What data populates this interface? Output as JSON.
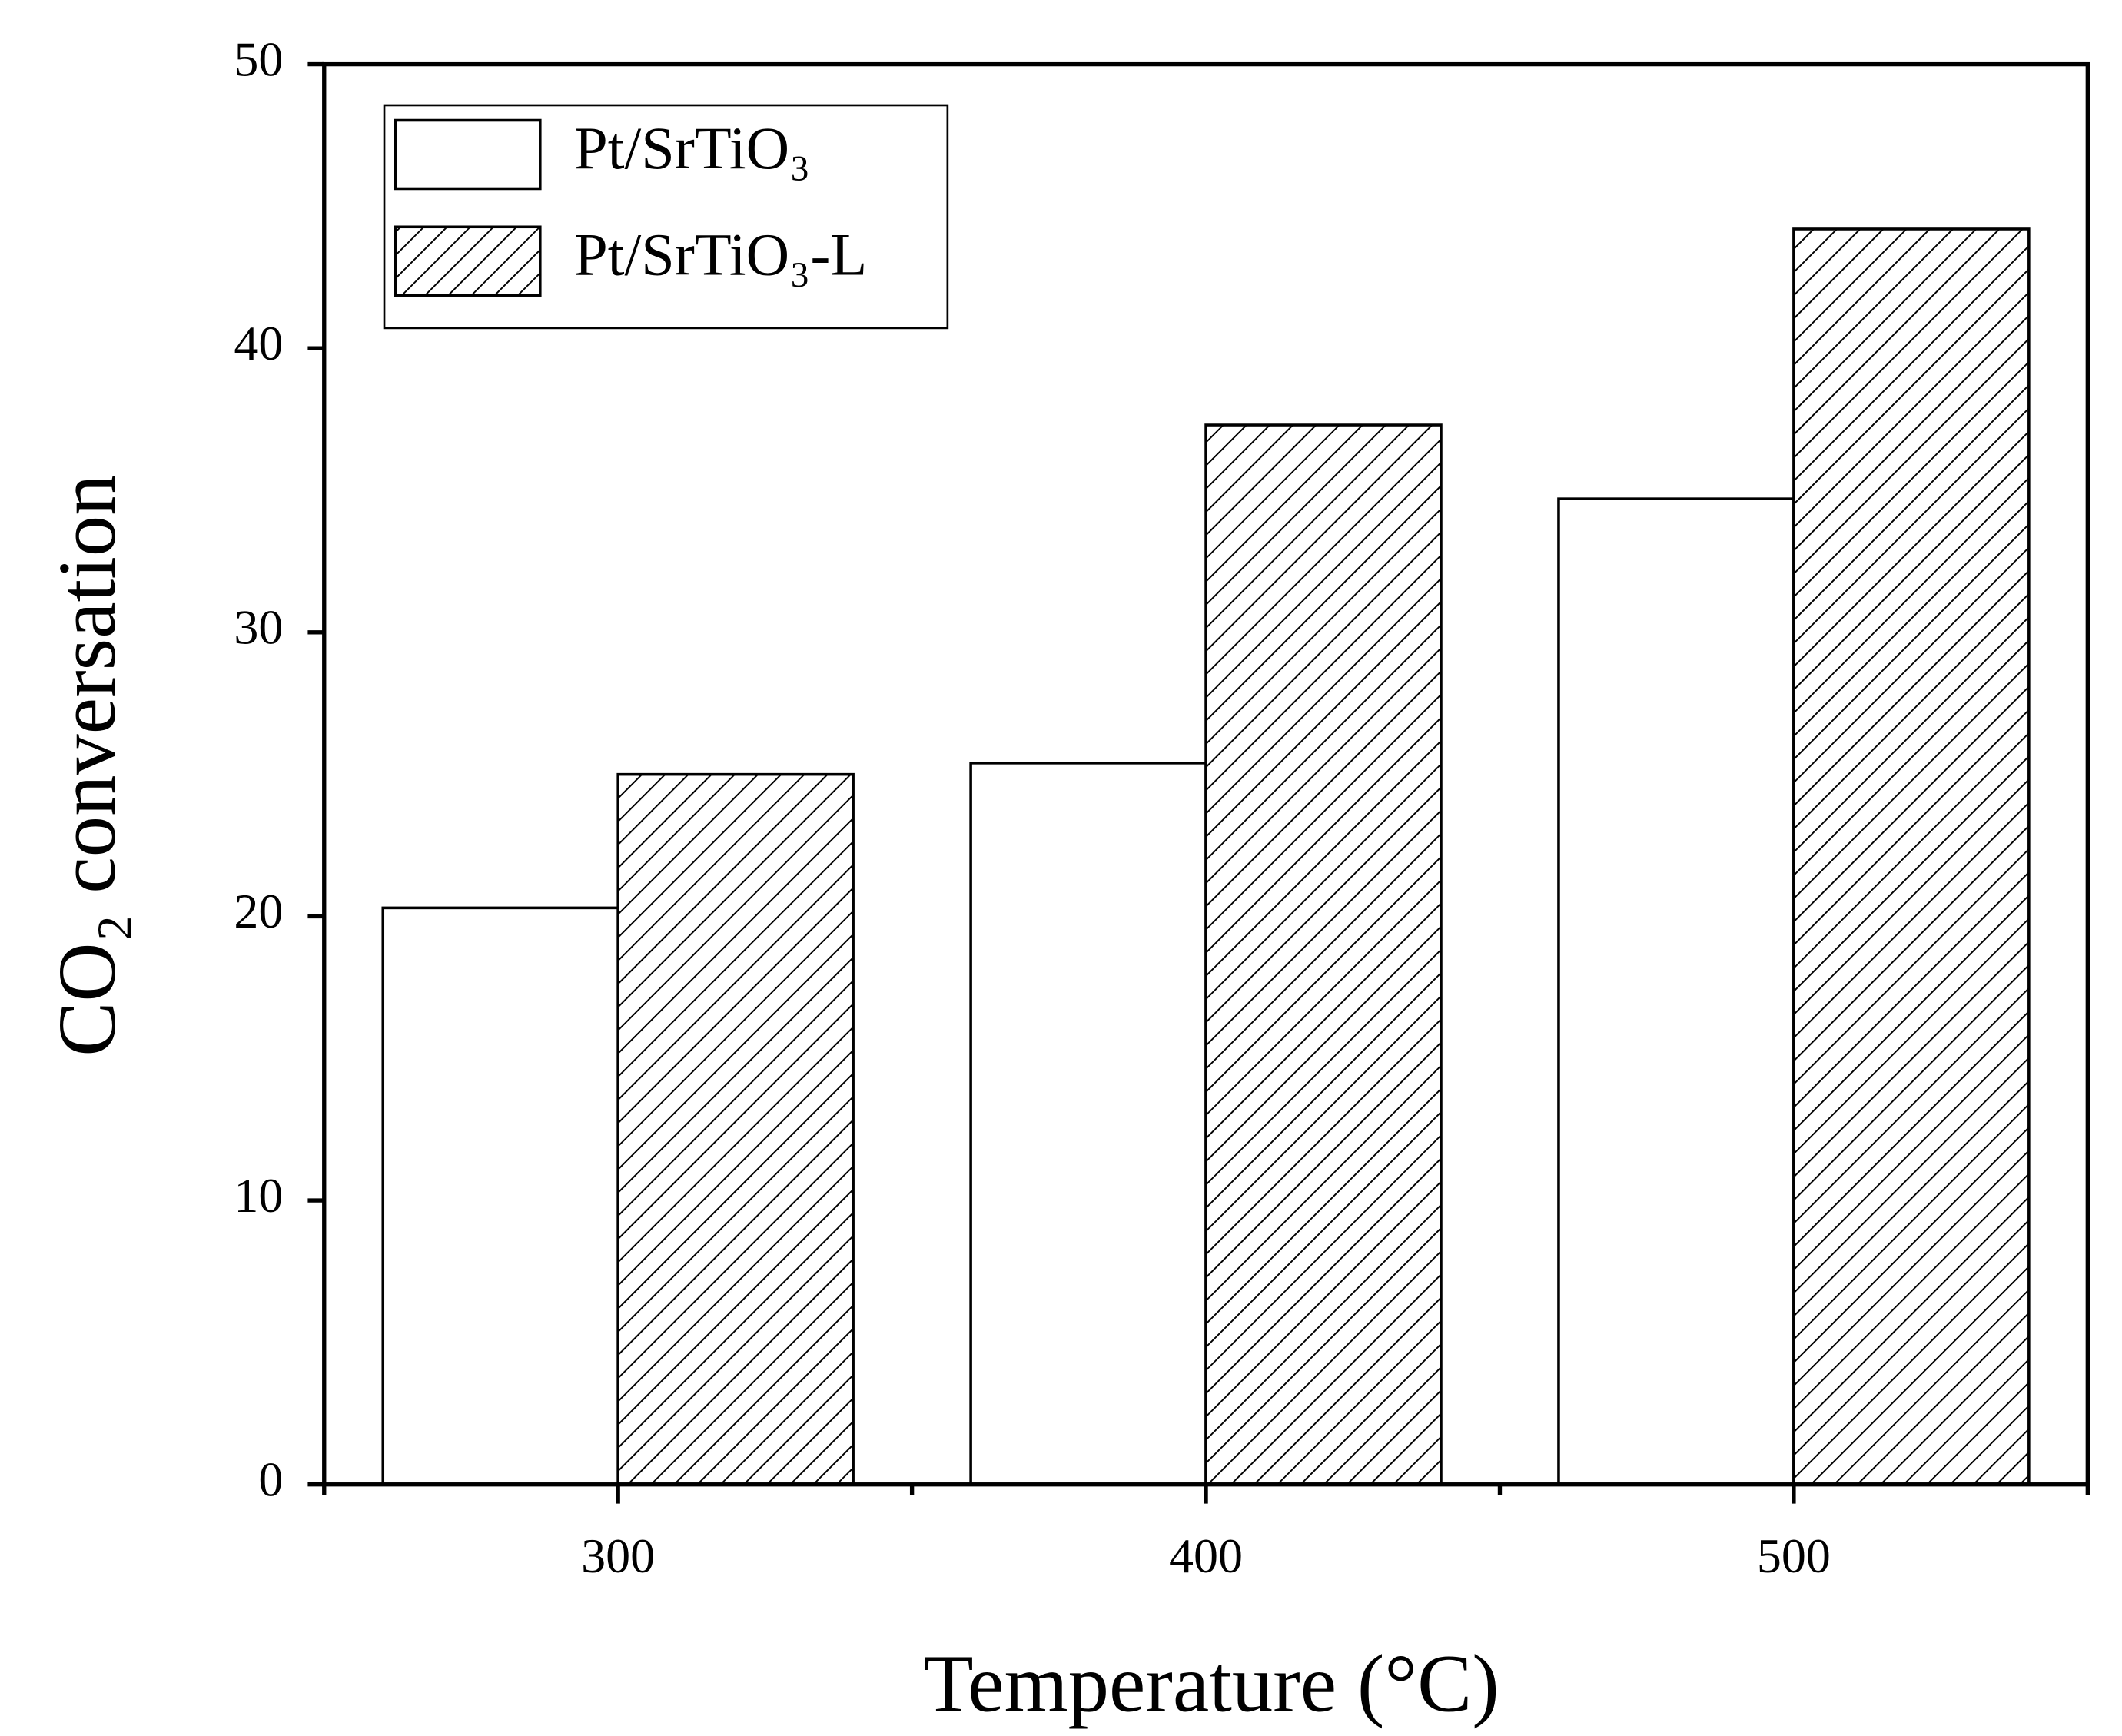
{
  "chart_data": {
    "type": "bar",
    "x_label": "Temperature (°C)",
    "y_label": "CO₂ conversation",
    "categories": [
      "300",
      "400",
      "500"
    ],
    "series": [
      {
        "name": "Pt/SrTiO₃",
        "color": "#ffffff",
        "hatch": false,
        "values": [
          20.3,
          25.4,
          34.7
        ]
      },
      {
        "name": "Pt/SrTiO₃-L",
        "color": "#ffffff",
        "hatch": true,
        "values": [
          25.0,
          37.3,
          44.2
        ]
      }
    ],
    "ylim": [
      0,
      50
    ],
    "yticks": [
      0,
      10,
      20,
      30,
      40,
      50
    ],
    "legend": "upper left",
    "grid": false
  }
}
